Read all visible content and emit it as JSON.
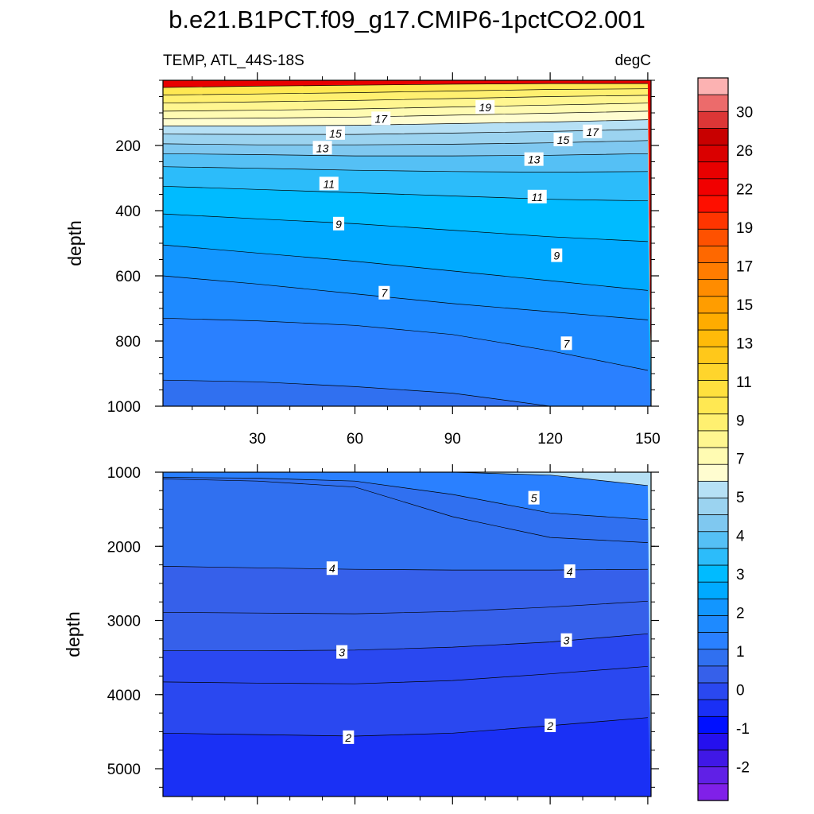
{
  "figure": {
    "title": "b.e21.B1PCT.f09_g17.CMIP6-1pctCO2.001",
    "subtitle_left": "TEMP, ATL_44S-18S",
    "subtitle_right": "degC"
  },
  "chart_data": [
    {
      "type": "heatmap",
      "subtype": "filled-contour",
      "panel": "upper",
      "title": "",
      "xlabel": "",
      "ylabel": "depth",
      "xlim": [
        1,
        151
      ],
      "ylim": [
        1000,
        0
      ],
      "y_inverted": true,
      "x_ticks": [
        30,
        60,
        90,
        120,
        150
      ],
      "y_ticks": [
        200,
        400,
        600,
        800,
        1000
      ],
      "contour_levels": [
        -2,
        -1,
        0,
        1,
        2,
        3,
        4,
        5,
        6,
        7,
        8,
        9,
        10,
        11,
        12,
        13,
        14,
        15,
        16,
        17,
        18,
        19,
        20,
        21,
        22,
        23,
        24,
        25,
        26,
        27,
        28,
        29,
        30
      ],
      "isotherm_depths": {
        "x": [
          1,
          30,
          60,
          90,
          120,
          150
        ],
        "levels": [
          {
            "t": 20,
            "depth": [
              22,
              18,
              15,
              12,
              10,
              10
            ]
          },
          {
            "t": 19,
            "depth": [
              45,
              42,
              38,
              33,
              28,
              26
            ]
          },
          {
            "t": 18,
            "depth": [
              70,
              66,
              62,
              56,
              50,
              46
            ]
          },
          {
            "t": 17,
            "depth": [
              95,
              92,
              88,
              82,
              76,
              70
            ]
          },
          {
            "t": 16,
            "depth": [
              118,
              116,
              113,
              107,
              101,
              95
            ]
          },
          {
            "t": 15,
            "depth": [
              140,
              140,
              138,
              133,
              128,
              121
            ]
          },
          {
            "t": 14,
            "depth": [
              165,
              166,
              166,
              162,
              157,
              150
            ]
          },
          {
            "t": 13,
            "depth": [
              195,
              198,
              198,
              196,
              192,
              185
            ]
          },
          {
            "t": 12,
            "depth": [
              225,
              228,
              232,
              232,
              230,
              225
            ]
          },
          {
            "t": 11,
            "depth": [
              265,
              270,
              276,
              280,
              282,
              280
            ]
          },
          {
            "t": 10,
            "depth": [
              325,
              335,
              345,
              355,
              365,
              370
            ]
          },
          {
            "t": 9,
            "depth": [
              410,
              425,
              440,
              460,
              480,
              495
            ]
          },
          {
            "t": 8,
            "depth": [
              505,
              530,
              555,
              585,
              615,
              645
            ]
          },
          {
            "t": 7,
            "depth": [
              600,
              625,
              655,
              685,
              710,
              735
            ]
          },
          {
            "t": 6,
            "depth": [
              730,
              738,
              752,
              780,
              830,
              890
            ]
          },
          {
            "t": 5,
            "depth": [
              920,
              925,
              940,
              960,
              1000,
              1000
            ]
          }
        ]
      },
      "contour_labels": [
        {
          "text": "19",
          "x": 100,
          "y": 83
        },
        {
          "text": "17",
          "x": 68,
          "y": 118
        },
        {
          "text": "17",
          "x": 133,
          "y": 158
        },
        {
          "text": "15",
          "x": 54,
          "y": 163
        },
        {
          "text": "15",
          "x": 124,
          "y": 183
        },
        {
          "text": "13",
          "x": 50,
          "y": 208
        },
        {
          "text": "13",
          "x": 115,
          "y": 243
        },
        {
          "text": "11",
          "x": 52,
          "y": 318
        },
        {
          "text": "11",
          "x": 116,
          "y": 358
        },
        {
          "text": "9",
          "x": 55,
          "y": 441
        },
        {
          "text": "9",
          "x": 122,
          "y": 538
        },
        {
          "text": "7",
          "x": 69,
          "y": 653
        },
        {
          "text": "7",
          "x": 125,
          "y": 808
        }
      ]
    },
    {
      "type": "heatmap",
      "subtype": "filled-contour",
      "panel": "lower",
      "title": "",
      "xlabel": "",
      "ylabel": "depth",
      "xlim": [
        1,
        151
      ],
      "ylim": [
        5375,
        1000
      ],
      "y_inverted": true,
      "y_ticks": [
        1000,
        2000,
        3000,
        4000,
        5000
      ],
      "isotherm_depths": {
        "x": [
          1,
          30,
          60,
          90,
          120,
          150
        ],
        "levels": [
          {
            "t": 6,
            "depth": [
              1000,
              1000,
              1000,
              1000,
              1040,
              1180
            ]
          },
          {
            "t": 5,
            "depth": [
              1070,
              1080,
              1120,
              1300,
              1550,
              1640
            ]
          },
          {
            "t": 4.5,
            "depth": [
              1090,
              1120,
              1200,
              1600,
              1880,
              1950
            ]
          },
          {
            "t": 4,
            "depth": [
              2270,
              2290,
              2310,
              2320,
              2320,
              2310
            ]
          },
          {
            "t": 3.5,
            "depth": [
              2890,
              2900,
              2910,
              2880,
              2820,
              2740
            ]
          },
          {
            "t": 3,
            "depth": [
              3410,
              3410,
              3400,
              3360,
              3290,
              3180
            ]
          },
          {
            "t": 2.5,
            "depth": [
              3830,
              3845,
              3855,
              3810,
              3720,
              3620
            ]
          },
          {
            "t": 2,
            "depth": [
              4520,
              4540,
              4560,
              4520,
              4420,
              4310
            ]
          }
        ]
      },
      "contour_labels": [
        {
          "text": "5",
          "x": 115,
          "y": 1350
        },
        {
          "text": "4",
          "x": 53,
          "y": 2300
        },
        {
          "text": "4",
          "x": 126,
          "y": 2340
        },
        {
          "text": "3",
          "x": 56,
          "y": 3430
        },
        {
          "text": "3",
          "x": 125,
          "y": 3270
        },
        {
          "text": "2",
          "x": 58,
          "y": 4580
        },
        {
          "text": "2",
          "x": 120,
          "y": 4420
        }
      ]
    }
  ],
  "shared_x_ticks": [
    30,
    60,
    90,
    120,
    150
  ],
  "colorbar": {
    "labels": [
      "30",
      "26",
      "22",
      "19",
      "17",
      "15",
      "13",
      "11",
      "9",
      "7",
      "5",
      "4",
      "3",
      "2",
      "1",
      "0",
      "-1",
      "-2"
    ],
    "colors": [
      "#fcb2b2",
      "#ec6b6b",
      "#dc3636",
      "#c80000",
      "#da0000",
      "#e80000",
      "#f10000",
      "#fe0f00",
      "#fe3500",
      "#fe5100",
      "#fe6800",
      "#ff7c00",
      "#ff8c00",
      "#ff9d00",
      "#ffac00",
      "#ffba09",
      "#ffc81a",
      "#ffd52c",
      "#ffe03e",
      "#ffe852",
      "#fff070",
      "#fff690",
      "#fffbb2",
      "#fffdd0",
      "#b6e0f5",
      "#9bd3f0",
      "#7fc8f0",
      "#55c0f5",
      "#2cbcfa",
      "#00bbff",
      "#00aaff",
      "#1296ff",
      "#1e8aff",
      "#2a80ff",
      "#3070f0",
      "#3660ea",
      "#2a48f0",
      "#1a30f5",
      "#0010ff",
      "#2510ee",
      "#4018e6",
      "#6020e6",
      "#8020e8"
    ]
  }
}
